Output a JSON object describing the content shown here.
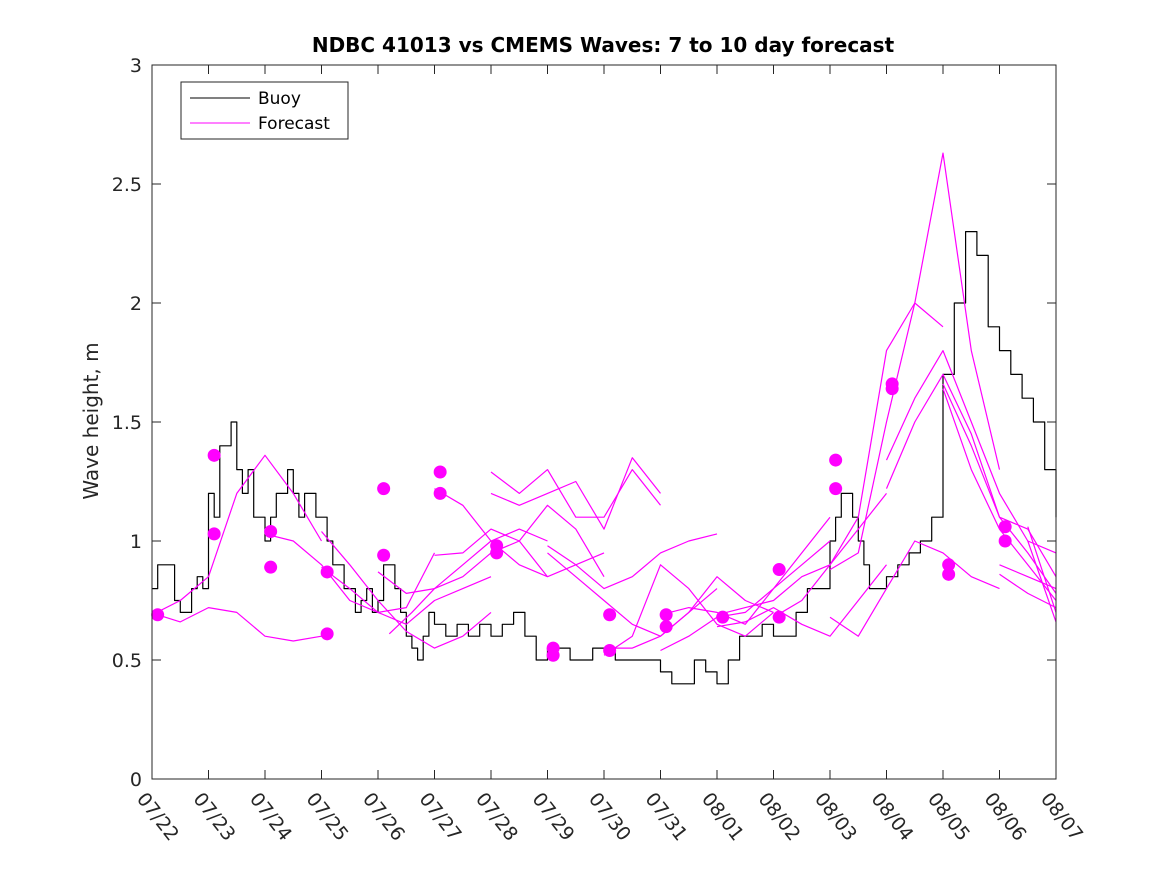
{
  "chart_data": {
    "type": "line",
    "title": "NDBC 41013 vs CMEMS Waves: 7 to 10 day forecast",
    "xlabel": "",
    "ylabel": "Wave height, m",
    "ylim": [
      0,
      3
    ],
    "yticks": [
      "0",
      "0.5",
      "1",
      "1.5",
      "2",
      "2.5",
      "3"
    ],
    "xlim": [
      0,
      16
    ],
    "xtick_labels": [
      "07/22",
      "07/23",
      "07/24",
      "07/25",
      "07/26",
      "07/27",
      "07/28",
      "07/29",
      "07/30",
      "07/31",
      "08/01",
      "08/02",
      "08/03",
      "08/04",
      "08/05",
      "08/06",
      "08/07"
    ],
    "grid": false,
    "legend": {
      "placement": "top-left",
      "entries": [
        "Buoy",
        "Forecast"
      ]
    },
    "colors": {
      "buoy": "#000000",
      "forecast": "#ff00ff"
    },
    "series": [
      {
        "name": "Buoy",
        "x": [
          0,
          0.1,
          0.2,
          0.4,
          0.5,
          0.6,
          0.7,
          0.8,
          0.9,
          1.0,
          1.1,
          1.2,
          1.3,
          1.4,
          1.5,
          1.6,
          1.7,
          1.8,
          1.9,
          2.0,
          2.05,
          2.1,
          2.2,
          2.3,
          2.4,
          2.5,
          2.6,
          2.7,
          2.8,
          2.9,
          3.0,
          3.1,
          3.2,
          3.3,
          3.4,
          3.5,
          3.6,
          3.7,
          3.8,
          3.9,
          4.0,
          4.1,
          4.2,
          4.3,
          4.4,
          4.5,
          4.6,
          4.7,
          4.8,
          4.9,
          5.0,
          5.2,
          5.4,
          5.6,
          5.8,
          6.0,
          6.2,
          6.4,
          6.6,
          6.8,
          7.0,
          7.2,
          7.4,
          7.6,
          7.8,
          8.0,
          8.2,
          8.4,
          8.6,
          8.8,
          9.0,
          9.2,
          9.4,
          9.6,
          9.8,
          10.0,
          10.2,
          10.4,
          10.6,
          10.8,
          11.0,
          11.2,
          11.4,
          11.6,
          11.8,
          12.0,
          12.1,
          12.2,
          12.3,
          12.4,
          12.5,
          12.6,
          12.7,
          12.8,
          12.9,
          13.0,
          13.2,
          13.4,
          13.6,
          13.8,
          14.0,
          14.2,
          14.4,
          14.6,
          14.8,
          15.0,
          15.2,
          15.4,
          15.6,
          15.8,
          16.0
        ],
        "values": [
          0.8,
          0.9,
          0.9,
          0.75,
          0.7,
          0.7,
          0.8,
          0.85,
          0.8,
          1.2,
          1.1,
          1.4,
          1.4,
          1.5,
          1.3,
          1.2,
          1.3,
          1.1,
          1.1,
          1.0,
          1.0,
          1.1,
          1.2,
          1.2,
          1.3,
          1.2,
          1.1,
          1.2,
          1.2,
          1.1,
          1.1,
          1.0,
          0.9,
          0.9,
          0.8,
          0.8,
          0.7,
          0.75,
          0.8,
          0.7,
          0.75,
          0.9,
          0.9,
          0.8,
          0.7,
          0.6,
          0.55,
          0.5,
          0.6,
          0.7,
          0.65,
          0.6,
          0.65,
          0.6,
          0.65,
          0.6,
          0.65,
          0.7,
          0.6,
          0.5,
          0.55,
          0.55,
          0.5,
          0.5,
          0.55,
          0.55,
          0.5,
          0.5,
          0.5,
          0.5,
          0.45,
          0.4,
          0.4,
          0.5,
          0.45,
          0.4,
          0.5,
          0.6,
          0.6,
          0.65,
          0.6,
          0.6,
          0.7,
          0.8,
          0.8,
          1.0,
          1.1,
          1.2,
          1.2,
          1.1,
          1.0,
          0.9,
          0.8,
          0.8,
          0.8,
          0.85,
          0.9,
          0.95,
          1.0,
          1.1,
          1.7,
          2.0,
          2.3,
          2.2,
          1.9,
          1.8,
          1.7,
          1.6,
          1.5,
          1.3,
          1.1
        ]
      },
      {
        "name": "Forecast",
        "x": [
          0,
          0.5,
          1,
          1.5,
          2,
          2.5,
          3
        ],
        "values": [
          0.69,
          0.75,
          0.85,
          1.2,
          1.36,
          1.2,
          1.0
        ]
      },
      {
        "x": [
          2,
          2.5,
          3,
          3.5,
          4,
          4.5,
          5
        ],
        "values": [
          1.03,
          1.0,
          0.9,
          0.75,
          0.7,
          0.72,
          0.95
        ]
      },
      {
        "x": [
          0.1,
          0.5,
          1,
          1.5,
          2,
          2.5,
          3
        ],
        "values": [
          0.69,
          0.66,
          0.72,
          0.7,
          0.6,
          0.58,
          0.6
        ]
      },
      {
        "x": [
          3,
          3.5,
          4,
          4.5,
          5,
          5.5,
          6
        ],
        "values": [
          1.04,
          0.9,
          0.75,
          0.62,
          0.55,
          0.6,
          0.7
        ]
      },
      {
        "x": [
          3,
          3.5,
          4,
          4.5,
          5,
          5.5,
          6
        ],
        "values": [
          0.89,
          0.8,
          0.7,
          0.65,
          0.75,
          0.8,
          0.85
        ]
      },
      {
        "x": [
          4,
          4.5,
          5,
          5.5,
          6,
          6.5,
          7
        ],
        "values": [
          0.87,
          0.78,
          0.8,
          0.9,
          1.0,
          1.05,
          1.0
        ]
      },
      {
        "x": [
          4.2,
          4.6,
          5,
          5.5,
          6,
          6.5,
          7
        ],
        "values": [
          0.61,
          0.7,
          0.8,
          0.85,
          0.95,
          1.0,
          0.85
        ]
      },
      {
        "x": [
          5,
          5.5,
          6,
          6.5,
          7,
          7.5,
          8
        ],
        "values": [
          1.22,
          1.15,
          1.0,
          0.9,
          0.85,
          0.9,
          0.95
        ]
      },
      {
        "x": [
          5,
          5.5,
          6,
          6.5,
          7,
          7.5,
          8
        ],
        "values": [
          0.94,
          0.95,
          1.05,
          1.0,
          1.15,
          1.05,
          0.85
        ]
      },
      {
        "x": [
          6,
          6.5,
          7,
          7.5,
          8,
          8.5,
          9
        ],
        "values": [
          1.29,
          1.2,
          1.3,
          1.1,
          1.1,
          1.3,
          1.15
        ]
      },
      {
        "x": [
          6,
          6.5,
          7,
          7.5,
          8,
          8.5,
          9
        ],
        "values": [
          1.2,
          1.15,
          1.2,
          1.25,
          1.05,
          1.35,
          1.2
        ]
      },
      {
        "x": [
          7,
          7.5,
          8,
          8.5,
          9,
          9.5,
          10
        ],
        "values": [
          0.98,
          0.9,
          0.8,
          0.85,
          0.95,
          1.0,
          1.03
        ]
      },
      {
        "x": [
          7,
          7.5,
          8,
          8.5,
          9,
          9.5,
          10
        ],
        "values": [
          0.95,
          0.85,
          0.75,
          0.65,
          0.6,
          0.7,
          0.8
        ]
      },
      {
        "x": [
          8,
          8.5,
          9,
          9.5,
          10,
          10.5,
          11
        ],
        "values": [
          0.55,
          0.55,
          0.6,
          0.7,
          0.85,
          0.75,
          0.7
        ]
      },
      {
        "x": [
          8,
          8.5,
          9,
          9.5,
          10,
          10.5,
          11
        ],
        "values": [
          0.52,
          0.6,
          0.9,
          0.8,
          0.65,
          0.6,
          0.7
        ]
      },
      {
        "x": [
          9,
          9.5,
          10,
          10.5,
          11,
          11.5,
          12
        ],
        "values": [
          0.69,
          0.72,
          0.7,
          0.65,
          0.8,
          0.9,
          1.0
        ]
      },
      {
        "x": [
          9,
          9.5,
          10,
          10.5,
          11,
          11.5,
          12
        ],
        "values": [
          0.54,
          0.6,
          0.68,
          0.7,
          0.8,
          0.95,
          1.1
        ]
      },
      {
        "x": [
          10,
          10.5,
          11,
          11.5,
          12,
          12.5,
          13
        ],
        "values": [
          0.69,
          0.72,
          0.75,
          0.85,
          0.9,
          1.05,
          1.2
        ]
      },
      {
        "x": [
          10,
          10.5,
          11,
          11.5,
          12,
          12.5,
          13
        ],
        "values": [
          0.64,
          0.66,
          0.72,
          0.65,
          0.6,
          0.75,
          0.9
        ]
      },
      {
        "x": [
          11,
          11.5,
          12,
          12.5,
          13,
          13.5,
          14
        ],
        "values": [
          0.68,
          0.75,
          0.9,
          1.1,
          1.8,
          2.0,
          1.9
        ]
      },
      {
        "x": [
          12,
          12.5,
          13,
          13.5,
          14,
          14.5,
          15
        ],
        "values": [
          0.88,
          0.95,
          1.5,
          2.0,
          2.63,
          1.8,
          1.3
        ]
      },
      {
        "x": [
          12,
          12.5,
          13,
          13.5,
          14,
          14.5,
          15
        ],
        "values": [
          0.68,
          0.6,
          0.8,
          1.0,
          0.95,
          0.85,
          0.8
        ]
      },
      {
        "x": [
          13,
          13.5,
          14,
          14.5,
          15,
          15.5,
          16
        ],
        "values": [
          1.34,
          1.6,
          1.8,
          1.5,
          1.2,
          1.0,
          0.95
        ]
      },
      {
        "x": [
          13,
          13.5,
          14,
          14.5,
          15,
          15.5,
          16
        ],
        "values": [
          1.22,
          1.5,
          1.7,
          1.45,
          1.1,
          1.05,
          0.85
        ]
      },
      {
        "x": [
          14,
          14.5,
          15,
          15.5,
          16
        ],
        "values": [
          1.66,
          1.4,
          1.1,
          0.95,
          0.78
        ]
      },
      {
        "x": [
          14,
          14.5,
          15,
          15.5,
          16
        ],
        "values": [
          1.64,
          1.3,
          1.05,
          0.9,
          0.75
        ]
      },
      {
        "x": [
          15,
          15.5,
          16
        ],
        "values": [
          0.9,
          0.85,
          0.8
        ]
      },
      {
        "x": [
          15,
          15.5,
          16
        ],
        "values": [
          0.86,
          0.78,
          0.72
        ]
      },
      {
        "x": [
          15.5,
          16
        ],
        "values": [
          1.06,
          0.7
        ]
      },
      {
        "x": [
          15.5,
          16
        ],
        "values": [
          1.0,
          0.66
        ]
      }
    ],
    "forecast_starts": [
      {
        "x": 0.1,
        "y": 0.69
      },
      {
        "x": 1.1,
        "y": 1.36
      },
      {
        "x": 1.1,
        "y": 1.03
      },
      {
        "x": 2.1,
        "y": 1.04
      },
      {
        "x": 2.1,
        "y": 0.89
      },
      {
        "x": 3.1,
        "y": 0.87
      },
      {
        "x": 3.1,
        "y": 0.61
      },
      {
        "x": 4.1,
        "y": 1.22
      },
      {
        "x": 4.1,
        "y": 0.94
      },
      {
        "x": 5.1,
        "y": 1.29
      },
      {
        "x": 5.1,
        "y": 1.2
      },
      {
        "x": 6.1,
        "y": 0.98
      },
      {
        "x": 6.1,
        "y": 0.95
      },
      {
        "x": 7.1,
        "y": 0.55
      },
      {
        "x": 7.1,
        "y": 0.52
      },
      {
        "x": 8.1,
        "y": 0.69
      },
      {
        "x": 8.1,
        "y": 0.54
      },
      {
        "x": 9.1,
        "y": 0.69
      },
      {
        "x": 9.1,
        "y": 0.64
      },
      {
        "x": 10.1,
        "y": 0.68
      },
      {
        "x": 11.1,
        "y": 0.88
      },
      {
        "x": 11.1,
        "y": 0.68
      },
      {
        "x": 12.1,
        "y": 1.34
      },
      {
        "x": 12.1,
        "y": 1.22
      },
      {
        "x": 13.1,
        "y": 1.66
      },
      {
        "x": 13.1,
        "y": 1.64
      },
      {
        "x": 14.1,
        "y": 0.9
      },
      {
        "x": 14.1,
        "y": 0.86
      },
      {
        "x": 15.1,
        "y": 1.06
      },
      {
        "x": 15.1,
        "y": 1.0
      }
    ]
  }
}
